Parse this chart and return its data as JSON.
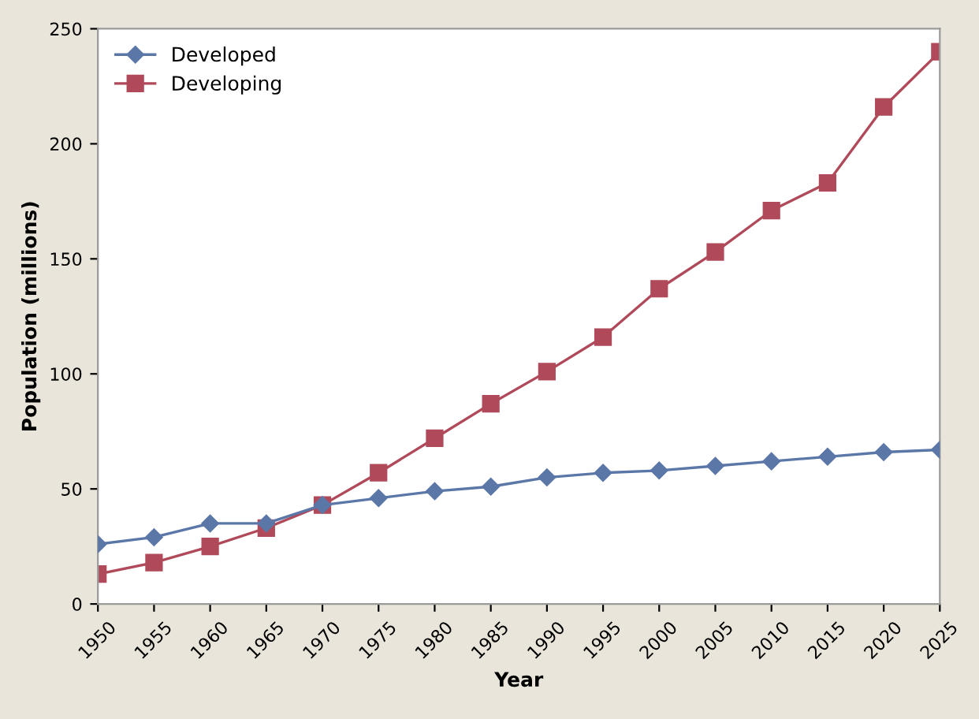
{
  "chart_data": {
    "type": "line",
    "xlabel": "Year",
    "ylabel": "Population (millions)",
    "categories": [
      "1950",
      "1955",
      "1960",
      "1965",
      "1970",
      "1975",
      "1980",
      "1985",
      "1990",
      "1995",
      "2000",
      "2005",
      "2010",
      "2015",
      "2020",
      "2025"
    ],
    "series": [
      {
        "name": "Developed",
        "color": "#5b77a8",
        "marker": "diamond",
        "values": [
          26,
          29,
          35,
          35,
          43,
          46,
          49,
          51,
          55,
          57,
          58,
          60,
          62,
          64,
          66,
          67
        ]
      },
      {
        "name": "Developing",
        "color": "#b04a5a",
        "marker": "square",
        "values": [
          13,
          18,
          25,
          33,
          43,
          57,
          72,
          87,
          101,
          116,
          137,
          153,
          171,
          183,
          216,
          240
        ]
      }
    ],
    "ylim": [
      0,
      250
    ],
    "yticks": [
      0,
      50,
      100,
      150,
      200,
      250
    ],
    "grid": false,
    "legend": "top left",
    "line_style": "solid"
  }
}
